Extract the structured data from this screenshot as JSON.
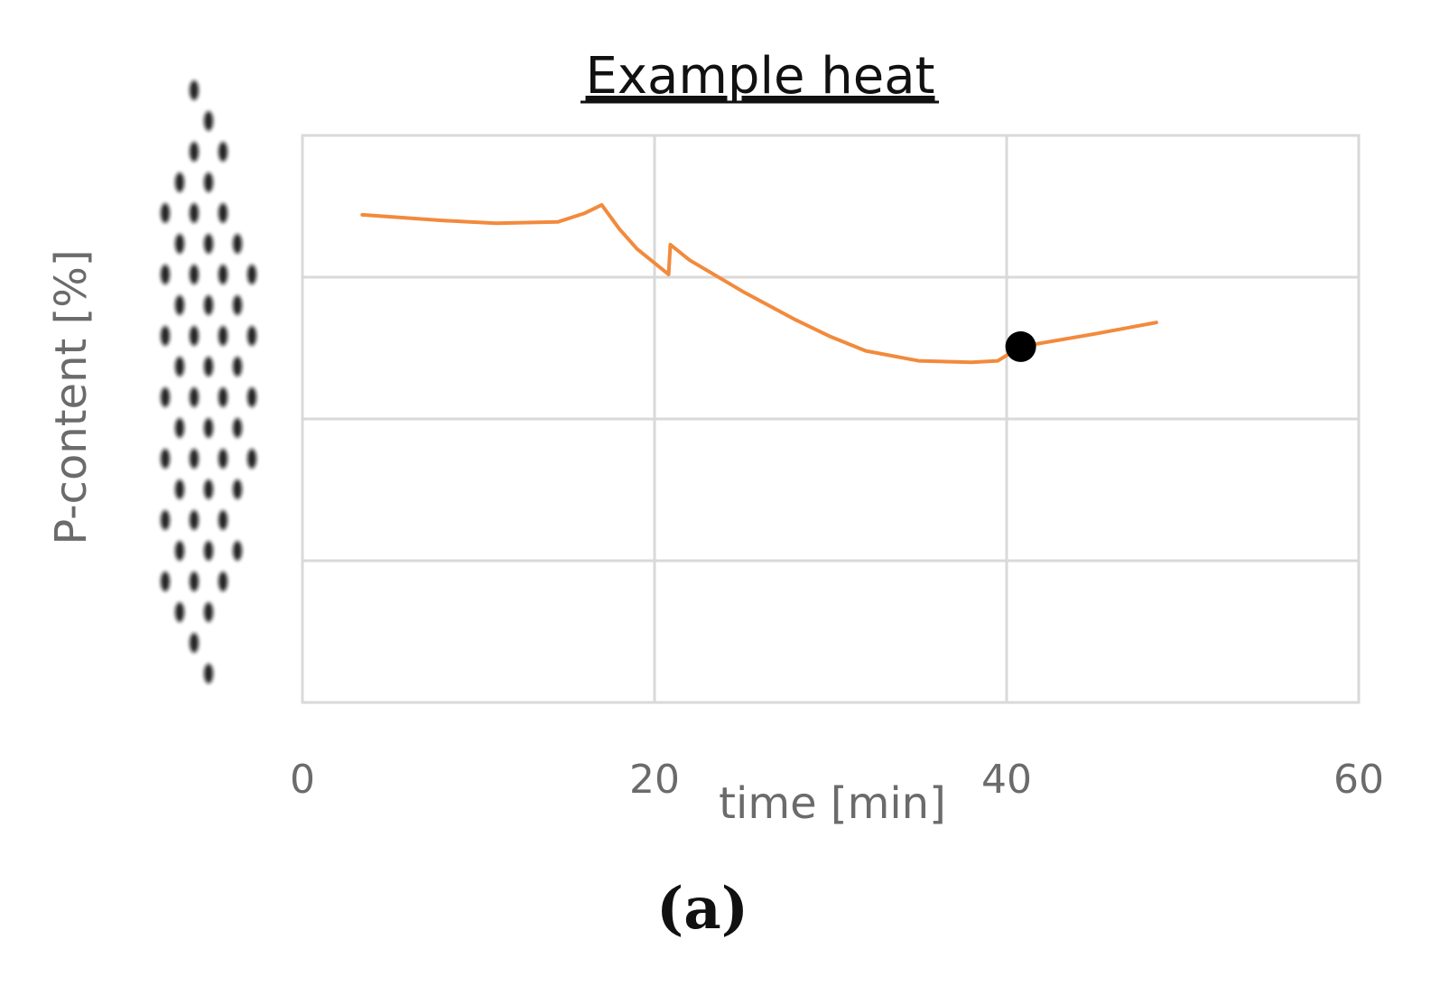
{
  "chart_data": {
    "type": "line",
    "title": "Example heat",
    "xlabel": "time [min]",
    "ylabel": "P-content [%]",
    "xlim": [
      0,
      60
    ],
    "x_ticks": [
      "0",
      "20",
      "40",
      "60"
    ],
    "ylim": [
      0,
      4
    ],
    "y_ticks_visible": false,
    "grid": true,
    "legend": "none",
    "series": [
      {
        "color": "#f28a3c",
        "points": [
          [
            3.4,
            3.44
          ],
          [
            8.0,
            3.4
          ],
          [
            11.0,
            3.38
          ],
          [
            14.5,
            3.39
          ],
          [
            16.0,
            3.45
          ],
          [
            17.0,
            3.51
          ],
          [
            18.0,
            3.34
          ],
          [
            19.0,
            3.2
          ],
          [
            20.0,
            3.1
          ],
          [
            20.8,
            3.02
          ],
          [
            20.9,
            3.23
          ],
          [
            22.0,
            3.12
          ],
          [
            25.0,
            2.9
          ],
          [
            28.0,
            2.7
          ],
          [
            30.0,
            2.58
          ],
          [
            32.0,
            2.48
          ],
          [
            35.0,
            2.41
          ],
          [
            38.0,
            2.4
          ],
          [
            39.5,
            2.41
          ],
          [
            40.8,
            2.51
          ],
          [
            45.0,
            2.6
          ],
          [
            48.5,
            2.68
          ]
        ]
      }
    ],
    "marker": {
      "x": 40.8,
      "y": 2.51,
      "color": "#000000"
    }
  },
  "caption": "(a)"
}
